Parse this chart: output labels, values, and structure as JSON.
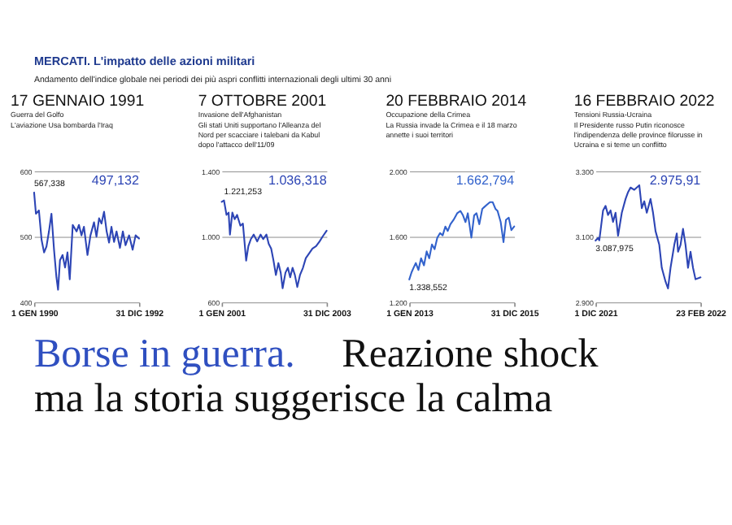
{
  "chart_data": [
    {
      "type": "other",
      "title": "MERCATI. L'impatto delle azioni militari",
      "subtitle": "Andamento dell'indice globale nei periodi dei più aspri conflitti internazionali degli ultimi 30 anni",
      "annotations": [
        "Borse in guerra.",
        "Reazione shock",
        "ma la storia suggerisce la calma"
      ]
    },
    {
      "type": "line",
      "title": "17 GENNAIO 1991",
      "subtitle": "Guerra del Golfo",
      "annotations": [
        "L'aviazione Usa bombarda l'Iraq",
        {
          "text": "567,338",
          "x": "1990-01-01",
          "y": 567.338
        },
        "497,132"
      ],
      "x": [
        "1990-01-01",
        "1990-01-20",
        "1990-02-20",
        "1990-03-20",
        "1990-04-15",
        "1990-05-10",
        "1990-06-05",
        "1990-07-01",
        "1990-07-28",
        "1990-08-22",
        "1990-09-08",
        "1990-09-28",
        "1990-10-25",
        "1990-11-20",
        "1990-12-15",
        "1991-01-08",
        "1991-02-08",
        "1991-03-20",
        "1991-04-14",
        "1991-05-10",
        "1991-06-05",
        "1991-07-12",
        "1991-08-12",
        "1991-09-18",
        "1991-10-14",
        "1991-11-10",
        "1991-12-05",
        "1992-01-01",
        "1992-01-28",
        "1992-02-22",
        "1992-03-18",
        "1992-04-14",
        "1992-05-10",
        "1992-06-15",
        "1992-07-15",
        "1992-08-12",
        "1992-09-18",
        "1992-10-25",
        "1992-11-25",
        "1992-12-31"
      ],
      "series": [
        {
          "color": "#2d45b5",
          "values": [
            567.338,
            535,
            540,
            495,
            476,
            485,
            508,
            535,
            480,
            438,
            419,
            464,
            472,
            453,
            476,
            435,
            518,
            508,
            518,
            502,
            515,
            472,
            502,
            522,
            500,
            528,
            520,
            538,
            508,
            491,
            515,
            492,
            508,
            483,
            508,
            487,
            502,
            480,
            502,
            497.132
          ]
        }
      ],
      "xlim": [
        "1990-01-01",
        "1992-12-31"
      ],
      "xticks": [
        {
          "value": "1990-01-01",
          "label": "1 GEN 1990"
        },
        {
          "value": "1992-12-31",
          "label": "31 DIC 1992"
        }
      ],
      "ylim": [
        400,
        600
      ],
      "yticks": [
        400,
        500,
        600
      ],
      "grid": "y"
    },
    {
      "type": "line",
      "title": "7 OTTOBRE 2001",
      "subtitle": "Invasione dell'Afghanistan",
      "annotations": [
        "Gli stati Uniti supportano l'Alleanza del Nord per scacciare i talebani da Kabul dopo l'attacco dell'11/09",
        {
          "text": "1.221,253",
          "x": "2001-01-25",
          "y": 1221.253
        },
        "1.036,318"
      ],
      "x": [
        "2001-01-01",
        "2001-01-25",
        "2001-02-20",
        "2001-03-14",
        "2001-03-28",
        "2001-04-22",
        "2001-05-16",
        "2001-06-10",
        "2001-07-15",
        "2001-08-10",
        "2001-09-13",
        "2001-10-06",
        "2001-11-01",
        "2001-12-01",
        "2002-01-06",
        "2002-02-10",
        "2002-03-10",
        "2002-04-12",
        "2002-05-06",
        "2002-06-01",
        "2002-06-25",
        "2002-07-20",
        "2002-08-15",
        "2002-09-08",
        "2002-09-28",
        "2002-10-28",
        "2002-11-22",
        "2002-12-16",
        "2003-01-10",
        "2003-02-03",
        "2003-02-28",
        "2003-03-28",
        "2003-04-28",
        "2003-05-28",
        "2003-07-01",
        "2003-08-05",
        "2003-09-12",
        "2003-10-18",
        "2003-11-18",
        "2003-12-31"
      ],
      "series": [
        {
          "color": "#2d45b5",
          "values": [
            1213,
            1221.253,
            1133,
            1147,
            1013,
            1147,
            1107,
            1133,
            1067,
            1080,
            854,
            942,
            985,
            1013,
            971,
            1013,
            985,
            1013,
            956,
            927,
            854,
            766,
            839,
            781,
            685,
            781,
            810,
            752,
            810,
            766,
            693,
            766,
            810,
            869,
            898,
            927,
            942,
            971,
            1000,
            1036.318
          ]
        }
      ],
      "xlim": [
        "2001-01-01",
        "2003-12-31"
      ],
      "xticks": [
        {
          "value": "2001-01-01",
          "label": "1 GEN 2001"
        },
        {
          "value": "2003-12-31",
          "label": "31 DIC 2003"
        }
      ],
      "ylim": [
        600,
        1400
      ],
      "yticks": [
        600,
        {
          "value": 1000,
          "label": "1.000"
        },
        {
          "value": 1400,
          "label": "1.400"
        }
      ],
      "grid": "y"
    },
    {
      "type": "line",
      "title": "20 FEBBRAIO 2014",
      "subtitle": "Occupazione della Crimea",
      "annotations": [
        "La Russia invade la Crimea e il 18 marzo annette i suoi territori",
        {
          "text": "1.338,552",
          "x": "2013-01-01",
          "y": 1338.552
        },
        "1.662,794"
      ],
      "x": [
        "2013-01-01",
        "2013-01-25",
        "2013-02-15",
        "2013-03-10",
        "2013-04-06",
        "2013-05-04",
        "2013-06-03",
        "2013-07-01",
        "2013-07-28",
        "2013-08-25",
        "2013-09-22",
        "2013-10-20",
        "2013-11-18",
        "2013-12-15",
        "2014-01-12",
        "2014-02-06",
        "2014-03-06",
        "2014-04-08",
        "2014-05-15",
        "2014-06-18",
        "2014-07-15",
        "2014-08-10",
        "2014-09-03",
        "2014-10-10",
        "2014-11-08",
        "2014-12-03",
        "2015-01-01",
        "2015-02-01",
        "2015-02-28",
        "2015-03-25",
        "2015-04-22",
        "2015-05-20",
        "2015-06-18",
        "2015-07-10",
        "2015-08-12",
        "2015-09-10",
        "2015-10-06",
        "2015-11-04",
        "2015-12-01",
        "2015-12-31"
      ],
      "series": [
        {
          "color": "#3262cc",
          "values": [
            1338.552,
            1383,
            1411,
            1439,
            1397,
            1468,
            1425,
            1510,
            1468,
            1552,
            1524,
            1594,
            1622,
            1608,
            1662,
            1635,
            1676,
            1703,
            1743,
            1757,
            1730,
            1689,
            1743,
            1594,
            1730,
            1743,
            1676,
            1770,
            1784,
            1797,
            1811,
            1811,
            1770,
            1757,
            1689,
            1567,
            1703,
            1716,
            1640,
            1662.794
          ]
        }
      ],
      "xlim": [
        "2013-01-01",
        "2015-12-31"
      ],
      "xticks": [
        {
          "value": "2013-01-01",
          "label": "1 GEN 2013"
        },
        {
          "value": "2015-12-31",
          "label": "31 DIC 2015"
        }
      ],
      "ylim": [
        1200,
        2000
      ],
      "yticks": [
        {
          "value": 1200,
          "label": "1.200"
        },
        {
          "value": 1600,
          "label": "1.600"
        },
        {
          "value": 2000,
          "label": "2.000"
        }
      ],
      "grid": "y"
    },
    {
      "type": "line",
      "title": "16 FEBBRAIO 2022",
      "subtitle": "Tensioni Russia-Ucraina",
      "annotations": [
        "Il Presidente russo Putin riconosce l'indipendenza delle province filorusse in Ucraina e si teme un conflitto",
        {
          "text": "3.087,975",
          "x": "2021-12-01",
          "y": 3087.975
        },
        "2.975,91"
      ],
      "x": [
        "2021-12-01",
        "2021-12-03",
        "2021-12-04",
        "2021-12-07",
        "2021-12-09",
        "2021-12-11",
        "2021-12-13",
        "2021-12-15",
        "2021-12-17",
        "2021-12-19",
        "2021-12-22",
        "2021-12-25",
        "2021-12-27",
        "2021-12-29",
        "2022-01-01",
        "2022-01-03",
        "2022-01-05",
        "2022-01-07",
        "2022-01-09",
        "2022-01-11",
        "2022-01-14",
        "2022-01-16",
        "2022-01-18",
        "2022-01-21",
        "2022-01-23",
        "2022-01-26",
        "2022-01-28",
        "2022-01-30",
        "2022-02-02",
        "2022-02-04",
        "2022-02-05",
        "2022-02-07",
        "2022-02-09",
        "2022-02-11",
        "2022-02-13",
        "2022-02-15",
        "2022-02-17",
        "2022-02-19",
        "2022-02-23"
      ],
      "series": [
        {
          "color": "#2d45b5",
          "values": [
            3087.975,
            3096,
            3089,
            3180,
            3194,
            3166,
            3180,
            3145,
            3173,
            3103,
            3173,
            3215,
            3236,
            3250,
            3243,
            3250,
            3257,
            3187,
            3208,
            3173,
            3215,
            3173,
            3117,
            3075,
            3005,
            2963,
            2942,
            3005,
            3075,
            3110,
            3054,
            3075,
            3124,
            3075,
            3005,
            3054,
            3005,
            2970,
            2975.91
          ]
        }
      ],
      "xlim": [
        "2021-12-01",
        "2022-02-23"
      ],
      "xticks": [
        {
          "value": "2021-12-01",
          "label": "1 DIC 2021"
        },
        {
          "value": "2022-02-23",
          "label": "23 FEB 2022"
        }
      ],
      "ylim": [
        2900,
        3300
      ],
      "yticks": [
        {
          "value": 2900,
          "label": "2.900"
        },
        {
          "value": 3100,
          "label": "3.100"
        },
        {
          "value": 3300,
          "label": "3.300"
        }
      ],
      "grid": "y"
    }
  ]
}
